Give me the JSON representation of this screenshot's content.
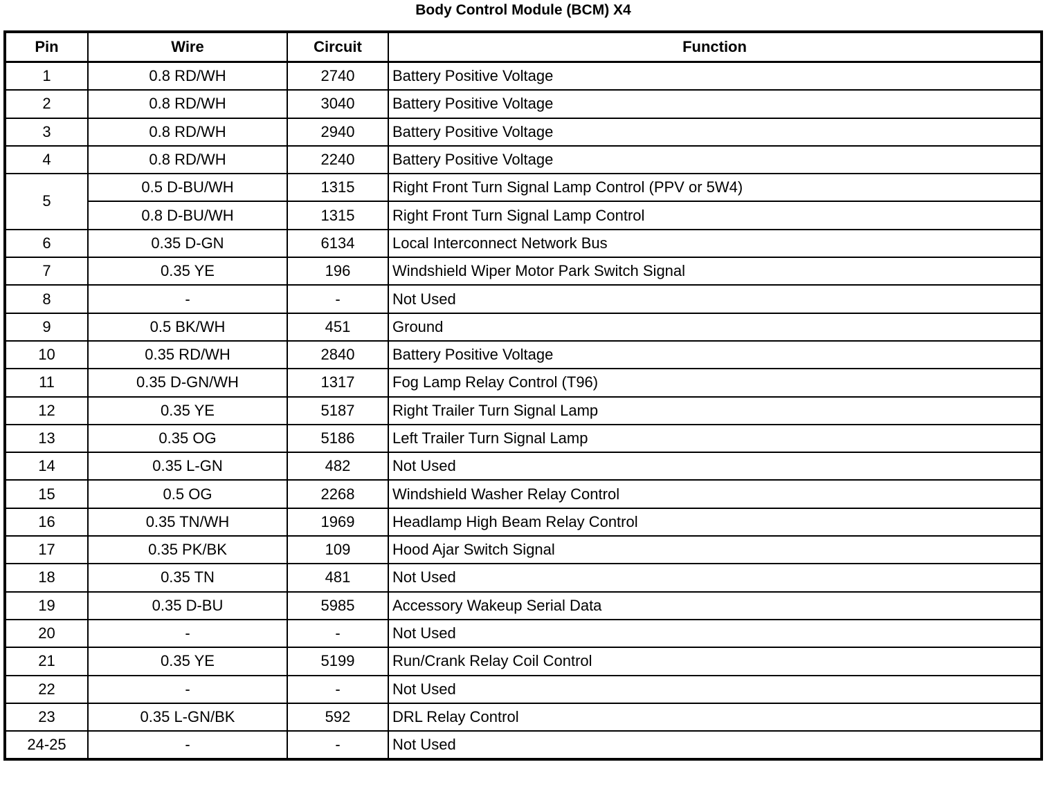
{
  "title": "Body Control Module (BCM) X4",
  "columns": [
    "Pin",
    "Wire",
    "Circuit",
    "Function"
  ],
  "rows": [
    {
      "pin": "1",
      "wire": "0.8 RD/WH",
      "circuit": "2740",
      "function": "Battery Positive Voltage"
    },
    {
      "pin": "2",
      "wire": "0.8 RD/WH",
      "circuit": "3040",
      "function": "Battery Positive Voltage"
    },
    {
      "pin": "3",
      "wire": "0.8 RD/WH",
      "circuit": "2940",
      "function": "Battery Positive Voltage"
    },
    {
      "pin": "4",
      "wire": "0.8 RD/WH",
      "circuit": "2240",
      "function": "Battery Positive Voltage"
    },
    {
      "pin": "5",
      "wire": "0.5 D-BU/WH",
      "circuit": "1315",
      "function": "Right Front Turn Signal Lamp Control (PPV or 5W4)",
      "span": 2
    },
    {
      "pin": "",
      "wire": "0.8 D-BU/WH",
      "circuit": "1315",
      "function": "Right Front Turn Signal Lamp Control",
      "cont": true
    },
    {
      "pin": "6",
      "wire": "0.35 D-GN",
      "circuit": "6134",
      "function": "Local Interconnect Network Bus"
    },
    {
      "pin": "7",
      "wire": "0.35 YE",
      "circuit": "196",
      "function": "Windshield Wiper Motor Park Switch Signal"
    },
    {
      "pin": "8",
      "wire": "-",
      "circuit": "-",
      "function": "Not Used"
    },
    {
      "pin": "9",
      "wire": "0.5 BK/WH",
      "circuit": "451",
      "function": "Ground"
    },
    {
      "pin": "10",
      "wire": "0.35 RD/WH",
      "circuit": "2840",
      "function": "Battery Positive Voltage"
    },
    {
      "pin": "11",
      "wire": "0.35 D-GN/WH",
      "circuit": "1317",
      "function": "Fog Lamp Relay Control (T96)"
    },
    {
      "pin": "12",
      "wire": "0.35 YE",
      "circuit": "5187",
      "function": "Right Trailer Turn Signal Lamp"
    },
    {
      "pin": "13",
      "wire": "0.35 OG",
      "circuit": "5186",
      "function": "Left Trailer Turn Signal Lamp"
    },
    {
      "pin": "14",
      "wire": "0.35 L-GN",
      "circuit": "482",
      "function": "Not Used"
    },
    {
      "pin": "15",
      "wire": "0.5 OG",
      "circuit": "2268",
      "function": "Windshield Washer Relay Control"
    },
    {
      "pin": "16",
      "wire": "0.35 TN/WH",
      "circuit": "1969",
      "function": "Headlamp High Beam Relay Control"
    },
    {
      "pin": "17",
      "wire": "0.35 PK/BK",
      "circuit": "109",
      "function": "Hood Ajar Switch Signal"
    },
    {
      "pin": "18",
      "wire": "0.35 TN",
      "circuit": "481",
      "function": "Not Used"
    },
    {
      "pin": "19",
      "wire": "0.35 D-BU",
      "circuit": "5985",
      "function": "Accessory Wakeup Serial Data"
    },
    {
      "pin": "20",
      "wire": "-",
      "circuit": "-",
      "function": "Not Used"
    },
    {
      "pin": "21",
      "wire": "0.35 YE",
      "circuit": "5199",
      "function": "Run/Crank Relay Coil Control"
    },
    {
      "pin": "22",
      "wire": "-",
      "circuit": "-",
      "function": "Not Used"
    },
    {
      "pin": "23",
      "wire": "0.35 L-GN/BK",
      "circuit": "592",
      "function": "DRL Relay Control"
    },
    {
      "pin": "24-25",
      "wire": "-",
      "circuit": "-",
      "function": "Not Used"
    }
  ]
}
